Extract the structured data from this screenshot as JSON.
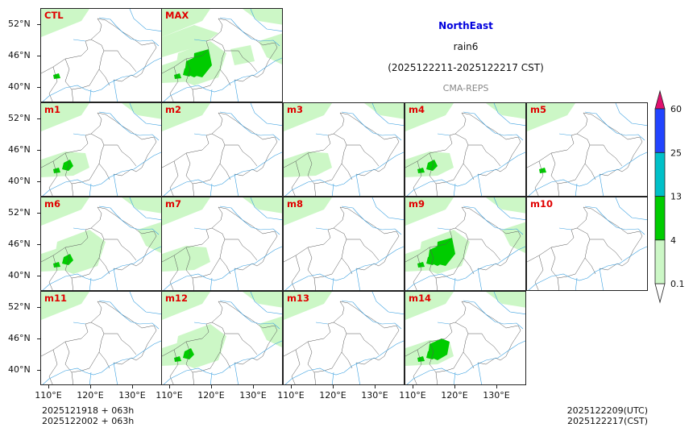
{
  "title": {
    "region": "NorthEast",
    "variable": "rain6",
    "period": "(2025122211-2025122217 CST)",
    "model": "CMA-REPS",
    "region_color": "#0000dd"
  },
  "chart_data": {
    "type": "map-panels",
    "panels": [
      "CTL",
      "MAX",
      "m1",
      "m2",
      "m3",
      "m4",
      "m5",
      "m6",
      "m7",
      "m8",
      "m9",
      "m10",
      "m11",
      "m12",
      "m13",
      "m14"
    ],
    "lat_ticks": [
      "52°N",
      "46°N",
      "40°N"
    ],
    "lon_ticks": [
      "110°E",
      "120°E",
      "130°E"
    ],
    "colorbar": {
      "levels": [
        "0.1",
        "4",
        "13",
        "25",
        "60"
      ],
      "colors": [
        "#ccf7c6",
        "#00cc00",
        "#00c0c8",
        "#2244ff"
      ],
      "under": "#ffffff",
      "over": "#e0106e"
    }
  },
  "footer": {
    "init_utc": "2025121918  +  063h",
    "init_cst": "2025122002  +  063h",
    "valid_utc": "2025122209(UTC)",
    "valid_cst": "2025122217(CST)"
  }
}
